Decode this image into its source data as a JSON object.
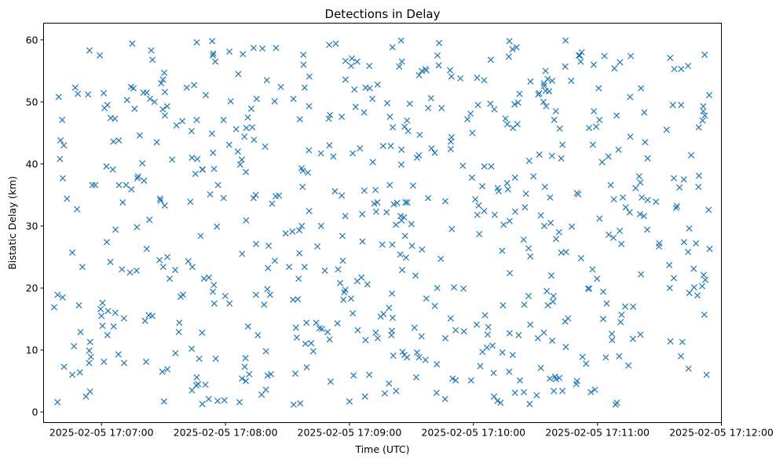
{
  "chart_data": {
    "type": "scatter",
    "title": "Detections in Delay",
    "xlabel": "Time (UTC)",
    "ylabel": "Bistatic Delay (km)",
    "marker": "x",
    "color": "#1f77b4",
    "grid": false,
    "xlim": [
      "2025-02-05 17:06:32",
      "2025-02-05 17:12:00"
    ],
    "ylim": [
      -1.7,
      62.7
    ],
    "xticks": [
      "2025-02-05 17:07:00",
      "2025-02-05 17:08:00",
      "2025-02-05 17:09:00",
      "2025-02-05 17:10:00",
      "2025-02-05 17:11:00",
      "2025-02-05 17:12:00"
    ],
    "yticks": [
      0,
      10,
      20,
      30,
      40,
      50,
      60
    ],
    "series": [
      {
        "points": []
      }
    ]
  }
}
